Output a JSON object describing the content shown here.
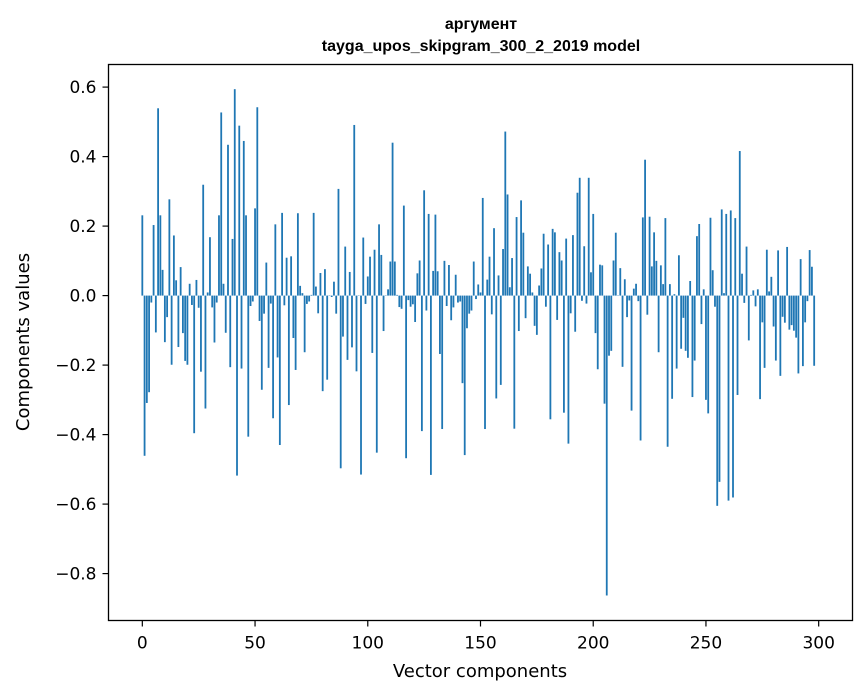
{
  "chart_data": {
    "type": "bar",
    "title_line1": "аргумент",
    "title_line2": "tayga_upos_skipgram_300_2_2019 model",
    "xlabel": "Vector components",
    "ylabel": "Components values",
    "xlim": [
      -15,
      315
    ],
    "ylim": [
      -0.935,
      0.665
    ],
    "xticks": [
      0,
      50,
      100,
      150,
      200,
      250,
      300
    ],
    "yticks": [
      -0.8,
      -0.6,
      -0.4,
      -0.2,
      0.0,
      0.2,
      0.4,
      0.6
    ],
    "ytick_labels": [
      "−0.8",
      "−0.6",
      "−0.4",
      "−0.2",
      "0.0",
      "0.2",
      "0.4",
      "0.6"
    ],
    "bar_color": "#1f77b4",
    "values": [
      0.231,
      -0.461,
      -0.309,
      -0.278,
      -0.02,
      0.203,
      -0.106,
      0.539,
      0.231,
      0.074,
      -0.134,
      -0.062,
      0.277,
      -0.199,
      0.173,
      0.044,
      -0.148,
      0.082,
      -0.108,
      -0.188,
      -0.199,
      0.034,
      -0.027,
      -0.396,
      0.045,
      -0.035,
      -0.219,
      0.319,
      -0.325,
      0.009,
      0.168,
      -0.034,
      -0.135,
      -0.02,
      0.231,
      0.527,
      0.034,
      -0.107,
      0.434,
      -0.206,
      0.163,
      0.594,
      -0.518,
      0.489,
      -0.21,
      0.445,
      0.231,
      -0.406,
      -0.03,
      -0.017,
      0.251,
      0.542,
      -0.073,
      -0.271,
      -0.052,
      0.095,
      -0.208,
      -0.023,
      -0.353,
      0.205,
      -0.178,
      -0.43,
      0.238,
      -0.028,
      0.109,
      -0.315,
      0.113,
      -0.122,
      -0.214,
      0.237,
      0.028,
      0.007,
      -0.163,
      -0.024,
      -0.017,
      0.002,
      0.238,
      0.026,
      -0.051,
      0.065,
      -0.275,
      0.076,
      -0.242,
      -0.001,
      -0.004,
      0.04,
      -0.052,
      0.307,
      -0.497,
      -0.118,
      0.141,
      -0.185,
      0.068,
      -0.149,
      0.491,
      -0.218,
      0.001,
      -0.515,
      0.167,
      -0.024,
      0.055,
      0.112,
      -0.165,
      0.132,
      -0.452,
      0.205,
      0.117,
      -0.102,
      0.001,
      0.018,
      0.098,
      0.44,
      0.098,
      0.002,
      -0.033,
      -0.038,
      0.259,
      -0.468,
      -0.013,
      -0.032,
      -0.025,
      -0.076,
      0.064,
      0.101,
      -0.39,
      0.303,
      -0.043,
      0.235,
      -0.516,
      0.071,
      0.233,
      0.07,
      -0.168,
      -0.384,
      0.1,
      -0.03,
      0.088,
      -0.071,
      -0.034,
      0.06,
      -0.02,
      -0.017,
      -0.252,
      -0.459,
      -0.094,
      -0.052,
      -0.043,
      0.098,
      -0.01,
      0.032,
      0.009,
      0.281,
      -0.384,
      0.046,
      0.112,
      -0.054,
      0.194,
      -0.296,
      0.058,
      -0.257,
      0.134,
      0.472,
      0.291,
      0.024,
      0.108,
      -0.383,
      0.226,
      -0.102,
      0.274,
      0.181,
      -0.065,
      0.084,
      0.063,
      0.009,
      -0.087,
      -0.113,
      0.029,
      0.078,
      0.178,
      -0.032,
      0.147,
      -0.356,
      0.192,
      0.182,
      -0.07,
      0.125,
      0.101,
      -0.337,
      0.164,
      -0.426,
      -0.051,
      0.174,
      -0.104,
      0.296,
      0.339,
      -0.015,
      0.142,
      -0.023,
      0.339,
      0.067,
      0.235,
      -0.108,
      -0.212,
      0.089,
      0.087,
      -0.311,
      -0.863,
      -0.173,
      -0.159,
      0.101,
      0.181,
      0.001,
      0.079,
      -0.205,
      0.047,
      -0.062,
      -0.014,
      -0.331,
      0.02,
      0.034,
      -0.016,
      -0.417,
      0.225,
      0.391,
      -0.055,
      0.227,
      0.084,
      0.182,
      0.1,
      -0.163,
      0.087,
      0.033,
      0.223,
      -0.435,
      0.033,
      -0.297,
      0.004,
      -0.21,
      0.116,
      -0.153,
      -0.064,
      -0.159,
      -0.179,
      0.042,
      -0.292,
      -0.187,
      0.171,
      0.206,
      -0.082,
      0.018,
      -0.3,
      -0.339,
      0.224,
      0.073,
      -0.032,
      -0.605,
      -0.536,
      0.248,
      0.007,
      0.235,
      -0.59,
      0.245,
      -0.581,
      0.223,
      -0.286,
      0.416,
      0.063,
      -0.021,
      0.141,
      -0.129,
      0.002,
      0.015,
      -0.031,
      0.018,
      -0.298,
      -0.077,
      -0.208,
      0.132,
      0.012,
      0.054,
      -0.089,
      -0.187,
      0.13,
      -0.231,
      -0.061,
      -0.078,
      0.14,
      -0.098,
      -0.085,
      -0.101,
      -0.121,
      -0.224,
      0.105,
      -0.203,
      -0.077,
      -0.016,
      0.131,
      0.083,
      -0.202
    ]
  }
}
